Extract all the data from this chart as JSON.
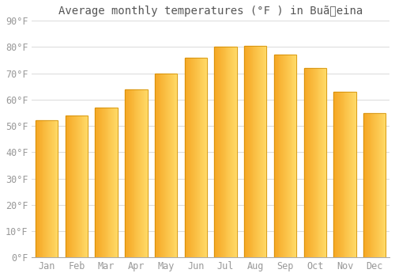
{
  "title": "Average monthly temperatures (°F ) in Buãeina",
  "months": [
    "Jan",
    "Feb",
    "Mar",
    "Apr",
    "May",
    "Jun",
    "Jul",
    "Aug",
    "Sep",
    "Oct",
    "Nov",
    "Dec"
  ],
  "values": [
    52,
    54,
    57,
    64,
    70,
    76,
    80,
    80.5,
    77,
    72,
    63,
    55
  ],
  "bar_color_dark": "#F5A623",
  "bar_color_light": "#FFD966",
  "ylim": [
    0,
    90
  ],
  "yticks": [
    0,
    10,
    20,
    30,
    40,
    50,
    60,
    70,
    80,
    90
  ],
  "background_color": "#FFFFFF",
  "grid_color": "#DDDDDD",
  "title_fontsize": 10,
  "tick_fontsize": 8.5,
  "tick_color": "#999999",
  "title_color": "#555555"
}
